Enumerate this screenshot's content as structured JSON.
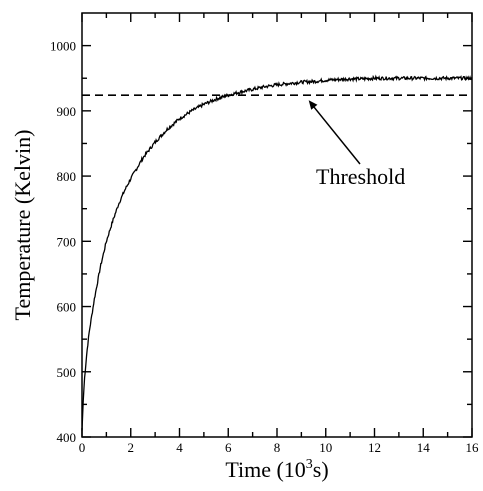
{
  "chart_data": {
    "type": "line",
    "title": "",
    "xlabel": {
      "text": "Time (10",
      "sup": "3",
      "suffix": "s)"
    },
    "ylabel": "Temperature (Kelvin)",
    "xlim": [
      0,
      16
    ],
    "ylim": [
      400,
      1050
    ],
    "x_ticks": [
      "0",
      "2",
      "4",
      "6",
      "8",
      "10",
      "12",
      "14",
      "16"
    ],
    "y_ticks": [
      "400",
      "500",
      "600",
      "700",
      "800",
      "900",
      "1000"
    ],
    "grid": false,
    "series": [
      {
        "x": [
          0,
          0.05,
          0.1,
          0.2,
          0.3,
          0.5,
          0.75,
          1,
          1.25,
          1.5,
          1.75,
          2,
          2.5,
          3,
          3.5,
          4,
          4.5,
          5,
          5.5,
          6,
          6.5,
          7,
          7.5,
          8,
          8.5,
          9,
          9.5,
          10,
          10.5,
          11,
          11.5,
          12,
          12.5,
          13,
          13.5,
          14,
          14.5,
          15,
          15.5,
          16
        ],
        "y": [
          410,
          455,
          488,
          530,
          562,
          610,
          660,
          700,
          730,
          757,
          778,
          796,
          828,
          852,
          872,
          888,
          900,
          910,
          918,
          924,
          929,
          933,
          937,
          940,
          942,
          944,
          945,
          947,
          948,
          949,
          949,
          950,
          950,
          950,
          950,
          950,
          950,
          950,
          950,
          950
        ]
      }
    ],
    "threshold": {
      "value": 924,
      "style": "dashed",
      "label": "Threshold",
      "arrow_to_x": 9.3
    }
  }
}
